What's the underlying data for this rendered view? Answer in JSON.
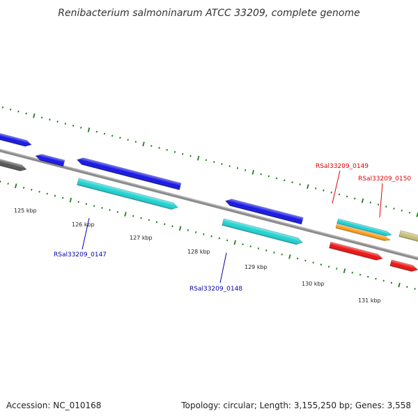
{
  "title": "Renibacterium salmoninarum ATCC 33209, complete genome",
  "footer": {
    "accession": "Accession: NC_010168",
    "summary": "Topology: circular; Length: 3,155,250 bp; Genes: 3,558"
  },
  "tick_labels": [
    "125 kbp",
    "126 kbp",
    "127 kbp",
    "128 kbp",
    "129 kbp",
    "130 kbp",
    "131 kbp"
  ],
  "gene_labels": [
    "RSal33209_0147",
    "RSal33209_0148",
    "RSal33209_0149",
    "RSal33209_0150"
  ],
  "colors": {
    "backbone": "#8c8c8c",
    "tick": "#1e7d1e",
    "cds_blue": "#1414e6",
    "cds_cyan": "#1ed2d2",
    "cds_red": "#ee1111",
    "cds_orange": "#ff9a10",
    "cds_khaki": "#c8c07a",
    "label_blue": "#0000aa",
    "label_red": "#dd0000"
  }
}
